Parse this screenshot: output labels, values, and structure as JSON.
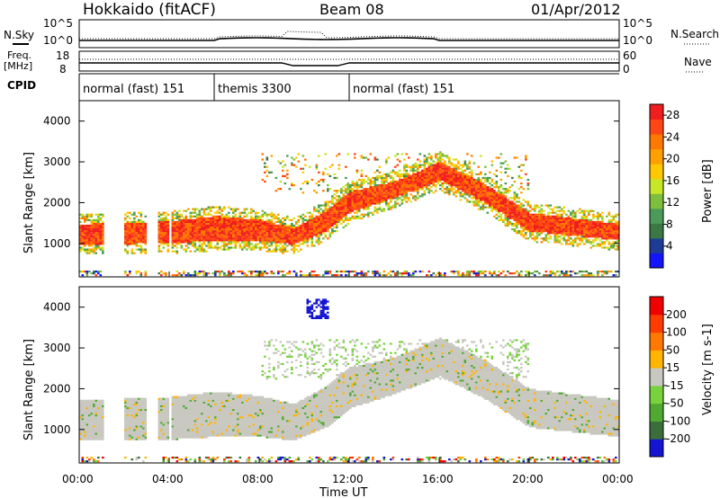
{
  "header": {
    "station": "Hokkaido (fitACF)",
    "beam": "Beam 08",
    "date": "01/Apr/2012"
  },
  "aux_labels": {
    "nsky": "N.Sky",
    "nsearch": "N.Search",
    "freq_line1": "Freq.",
    "freq_line2": "[MHz]",
    "nave": "Nave",
    "cpid": "CPID",
    "noise_left_ticks": [
      "10^5",
      "10^0"
    ],
    "noise_right_ticks": [
      "10^5",
      "10^0"
    ],
    "freq_left_ticks": [
      "18",
      "8"
    ],
    "freq_right_ticks": [
      "60",
      "0"
    ]
  },
  "cpid_segments": [
    {
      "label": "normal (fast) 151",
      "start_hour": 0,
      "end_hour": 6
    },
    {
      "label": "themis 3300",
      "start_hour": 6,
      "end_hour": 12
    },
    {
      "label": "normal (fast) 151",
      "start_hour": 12,
      "end_hour": 24
    }
  ],
  "time_axis": {
    "label": "Time UT",
    "ticks": [
      "00:00",
      "04:00",
      "08:00",
      "12:00",
      "16:00",
      "20:00",
      "00:00"
    ],
    "tick_hours": [
      0,
      4,
      8,
      12,
      16,
      20,
      24
    ]
  },
  "data_gaps_hours": [
    [
      1.0,
      2.0
    ],
    [
      3.0,
      3.5
    ],
    [
      4.0,
      4.05
    ]
  ],
  "chart_data": [
    {
      "type": "heatmap",
      "title": "Power",
      "ylabel": "Slant Range [km]",
      "xlabel": "",
      "xlim_hours": [
        0,
        24
      ],
      "ylim_km": [
        180,
        4500
      ],
      "yticks": [
        "1000",
        "2000",
        "3000",
        "4000"
      ],
      "colorbar": {
        "label": "Power [dB]",
        "ticks": [
          "4",
          "8",
          "12",
          "16",
          "20",
          "24",
          "28"
        ],
        "range": [
          0,
          30
        ],
        "colors": [
          "#1414ff",
          "#1e3c96",
          "#3c7846",
          "#4a9a5a",
          "#7dbe3c",
          "#c8e628",
          "#ffc800",
          "#ffa000",
          "#ff7800",
          "#ff4614",
          "#f01e1e"
        ]
      },
      "main_band_km": [
        {
          "hour": 0,
          "center": 1200,
          "width": 500
        },
        {
          "hour": 4,
          "center": 1250,
          "width": 550
        },
        {
          "hour": 6,
          "center": 1350,
          "width": 600
        },
        {
          "hour": 8,
          "center": 1300,
          "width": 500
        },
        {
          "hour": 9.5,
          "center": 1150,
          "width": 400
        },
        {
          "hour": 11,
          "center": 1550,
          "width": 500
        },
        {
          "hour": 12,
          "center": 2000,
          "width": 500
        },
        {
          "hour": 14,
          "center": 2300,
          "width": 400
        },
        {
          "hour": 16,
          "center": 2750,
          "width": 450
        },
        {
          "hour": 18,
          "center": 2200,
          "width": 450
        },
        {
          "hour": 20,
          "center": 1500,
          "width": 450
        },
        {
          "hour": 24,
          "center": 1250,
          "width": 400
        }
      ]
    },
    {
      "type": "heatmap",
      "title": "Velocity",
      "ylabel": "Slant Range [km]",
      "xlabel": "Time UT",
      "xlim_hours": [
        0,
        24
      ],
      "ylim_km": [
        180,
        4500
      ],
      "yticks": [
        "1000",
        "2000",
        "3000",
        "4000"
      ],
      "colorbar": {
        "label": "Velocity [m s-1]",
        "ticks": [
          "200",
          "100",
          "50",
          "15",
          "-15",
          "-50",
          "-100",
          "-200"
        ],
        "range": [
          -250,
          250
        ],
        "colors": [
          "#1414d2",
          "#3c6e3c",
          "#50aa32",
          "#78d23c",
          "#c8c8c0",
          "#ffb400",
          "#ff7800",
          "#ff3c00",
          "#f00000"
        ]
      }
    }
  ]
}
